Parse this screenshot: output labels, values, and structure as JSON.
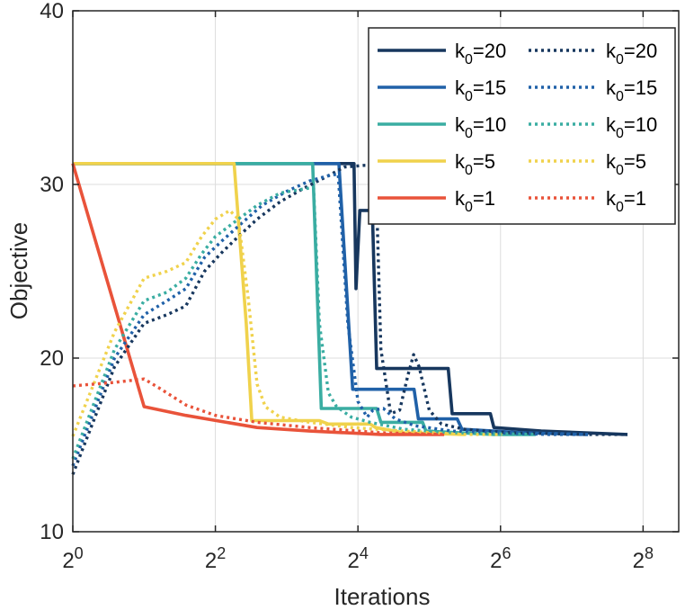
{
  "chart_data": {
    "type": "line",
    "title": "",
    "xlabel": "Iterations",
    "ylabel": "Objective",
    "xscale": "log2",
    "xlim": [
      1,
      362
    ],
    "ylim": [
      10,
      40
    ],
    "x_ticks": [
      1,
      4,
      16,
      64,
      256
    ],
    "x_tick_base": "2",
    "x_tick_exponents": [
      "0",
      "2",
      "4",
      "6",
      "8"
    ],
    "y_ticks": [
      10,
      20,
      30,
      40
    ],
    "y_tick_labels": [
      "10",
      "20",
      "30",
      "40"
    ],
    "grid": true,
    "legend_position": "top-right",
    "legend_sub": "0",
    "series": [
      {
        "name": "k0=20 (solid)",
        "legend_base": "k",
        "legend_value": "=20",
        "color": "#17375e",
        "style": "solid",
        "points": [
          [
            1,
            31.2
          ],
          [
            15.4,
            31.2
          ],
          [
            15.7,
            24
          ],
          [
            16.3,
            28.5
          ],
          [
            18.4,
            28.5
          ],
          [
            19.2,
            19.4
          ],
          [
            38.5,
            19.4
          ],
          [
            40,
            16.8
          ],
          [
            58,
            16.8
          ],
          [
            60,
            16
          ],
          [
            95,
            15.8
          ],
          [
            220,
            15.6
          ]
        ]
      },
      {
        "name": "k0=15 (solid)",
        "legend_base": "k",
        "legend_value": "=15",
        "color": "#2061a8",
        "style": "solid",
        "points": [
          [
            1,
            31.2
          ],
          [
            13.3,
            31.2
          ],
          [
            15.2,
            18.2
          ],
          [
            27.6,
            18.2
          ],
          [
            28.8,
            16.5
          ],
          [
            42,
            16.5
          ],
          [
            44,
            15.9
          ],
          [
            80,
            15.7
          ],
          [
            150,
            15.6
          ]
        ]
      },
      {
        "name": "k0=10 (solid)",
        "legend_base": "k",
        "legend_value": "=10",
        "color": "#3aada2",
        "style": "solid",
        "points": [
          [
            1,
            31.2
          ],
          [
            10.3,
            31.2
          ],
          [
            11.2,
            17.1
          ],
          [
            19.2,
            17.1
          ],
          [
            20,
            16.3
          ],
          [
            30,
            16.3
          ],
          [
            31,
            15.8
          ],
          [
            60,
            15.6
          ],
          [
            90,
            15.6
          ]
        ]
      },
      {
        "name": "k0=5 (solid)",
        "legend_base": "k",
        "legend_value": "=5",
        "color": "#f0d24c",
        "style": "solid",
        "points": [
          [
            1,
            31.2
          ],
          [
            4.8,
            31.2
          ],
          [
            5.4,
            22
          ],
          [
            5.7,
            16.4
          ],
          [
            11,
            16.4
          ],
          [
            12,
            16.2
          ],
          [
            18,
            16.2
          ],
          [
            19,
            16
          ],
          [
            25,
            15.7
          ],
          [
            45,
            15.6
          ]
        ]
      },
      {
        "name": "k0=1 (solid)",
        "legend_base": "k",
        "legend_value": "=1",
        "color": "#e9533a",
        "style": "solid",
        "points": [
          [
            1,
            31.2
          ],
          [
            2,
            17.2
          ],
          [
            3,
            16.7
          ],
          [
            6,
            16
          ],
          [
            10,
            15.8
          ],
          [
            20,
            15.6
          ],
          [
            37,
            15.6
          ]
        ]
      },
      {
        "name": "k0=20 (dotted)",
        "legend_base": "k",
        "legend_value": "=20",
        "color": "#17375e",
        "style": "dotted",
        "points": [
          [
            1,
            13.3
          ],
          [
            1.5,
            19.5
          ],
          [
            2,
            22
          ],
          [
            2.5,
            22.5
          ],
          [
            3,
            23
          ],
          [
            3.6,
            25
          ],
          [
            4.2,
            26
          ],
          [
            5,
            27
          ],
          [
            6,
            28
          ],
          [
            7.5,
            29
          ],
          [
            9.5,
            29.8
          ],
          [
            12,
            30.5
          ],
          [
            14,
            31
          ],
          [
            17,
            31.1
          ],
          [
            19,
            31.1
          ],
          [
            20,
            20.5
          ],
          [
            22,
            16.8
          ],
          [
            24,
            17
          ],
          [
            26,
            19
          ],
          [
            27.5,
            20.2
          ],
          [
            29,
            19.5
          ],
          [
            32,
            17
          ],
          [
            36,
            16.2
          ],
          [
            45,
            15.9
          ],
          [
            70,
            15.7
          ],
          [
            150,
            15.6
          ],
          [
            220,
            15.6
          ]
        ]
      },
      {
        "name": "k0=15 (dotted)",
        "legend_base": "k",
        "legend_value": "=15",
        "color": "#2061a8",
        "style": "dotted",
        "points": [
          [
            1,
            13.8
          ],
          [
            1.5,
            20
          ],
          [
            2,
            22.5
          ],
          [
            2.5,
            23.3
          ],
          [
            3,
            24
          ],
          [
            3.6,
            25.8
          ],
          [
            4.3,
            26.8
          ],
          [
            5.2,
            27.8
          ],
          [
            6.3,
            28.8
          ],
          [
            8,
            29.6
          ],
          [
            10,
            30.2
          ],
          [
            12,
            30.5
          ],
          [
            13.2,
            30.6
          ],
          [
            14.5,
            22
          ],
          [
            16,
            17.5
          ],
          [
            17.5,
            16.6
          ],
          [
            18.5,
            17
          ],
          [
            20.5,
            17.1
          ],
          [
            23,
            16.5
          ],
          [
            28,
            16.1
          ],
          [
            40,
            15.8
          ],
          [
            60,
            15.7
          ],
          [
            100,
            15.6
          ],
          [
            150,
            15.6
          ]
        ]
      },
      {
        "name": "k0=10 (dotted)",
        "legend_base": "k",
        "legend_value": "=10",
        "color": "#3aada2",
        "style": "dotted",
        "points": [
          [
            1,
            14.2
          ],
          [
            1.5,
            20.5
          ],
          [
            2,
            23.3
          ],
          [
            2.5,
            23.8
          ],
          [
            3,
            24.6
          ],
          [
            3.5,
            26
          ],
          [
            4,
            27
          ],
          [
            5,
            28
          ],
          [
            6,
            28.8
          ],
          [
            7.5,
            29.5
          ],
          [
            10,
            29.8
          ],
          [
            10.4,
            29.8
          ],
          [
            11,
            22
          ],
          [
            12,
            18
          ],
          [
            13,
            17.2
          ],
          [
            15,
            16.6
          ],
          [
            18,
            16.3
          ],
          [
            25,
            15.9
          ],
          [
            40,
            15.7
          ],
          [
            90,
            15.6
          ]
        ]
      },
      {
        "name": "k0=5 (dotted)",
        "legend_base": "k",
        "legend_value": "=5",
        "color": "#f0d24c",
        "style": "dotted",
        "points": [
          [
            1,
            15.5
          ],
          [
            1.5,
            21.5
          ],
          [
            2,
            24.6
          ],
          [
            2.5,
            25
          ],
          [
            3,
            25.5
          ],
          [
            3.5,
            27
          ],
          [
            4,
            28
          ],
          [
            4.6,
            28.5
          ],
          [
            5,
            28
          ],
          [
            5.5,
            23.5
          ],
          [
            6,
            18.5
          ],
          [
            6.5,
            17.2
          ],
          [
            7.5,
            16.6
          ],
          [
            10,
            16.3
          ],
          [
            15,
            16
          ],
          [
            25,
            15.8
          ],
          [
            45,
            15.6
          ],
          [
            65,
            15.6
          ]
        ]
      },
      {
        "name": "k0=1 (dotted)",
        "legend_base": "k",
        "legend_value": "=1",
        "color": "#e9533a",
        "style": "dotted",
        "points": [
          [
            1,
            18.4
          ],
          [
            1.5,
            18.6
          ],
          [
            2,
            18.8
          ],
          [
            2.3,
            18.3
          ],
          [
            3,
            17.3
          ],
          [
            4,
            16.7
          ],
          [
            6,
            16.3
          ],
          [
            10,
            16
          ],
          [
            20,
            15.7
          ],
          [
            37,
            15.6
          ]
        ]
      }
    ]
  }
}
